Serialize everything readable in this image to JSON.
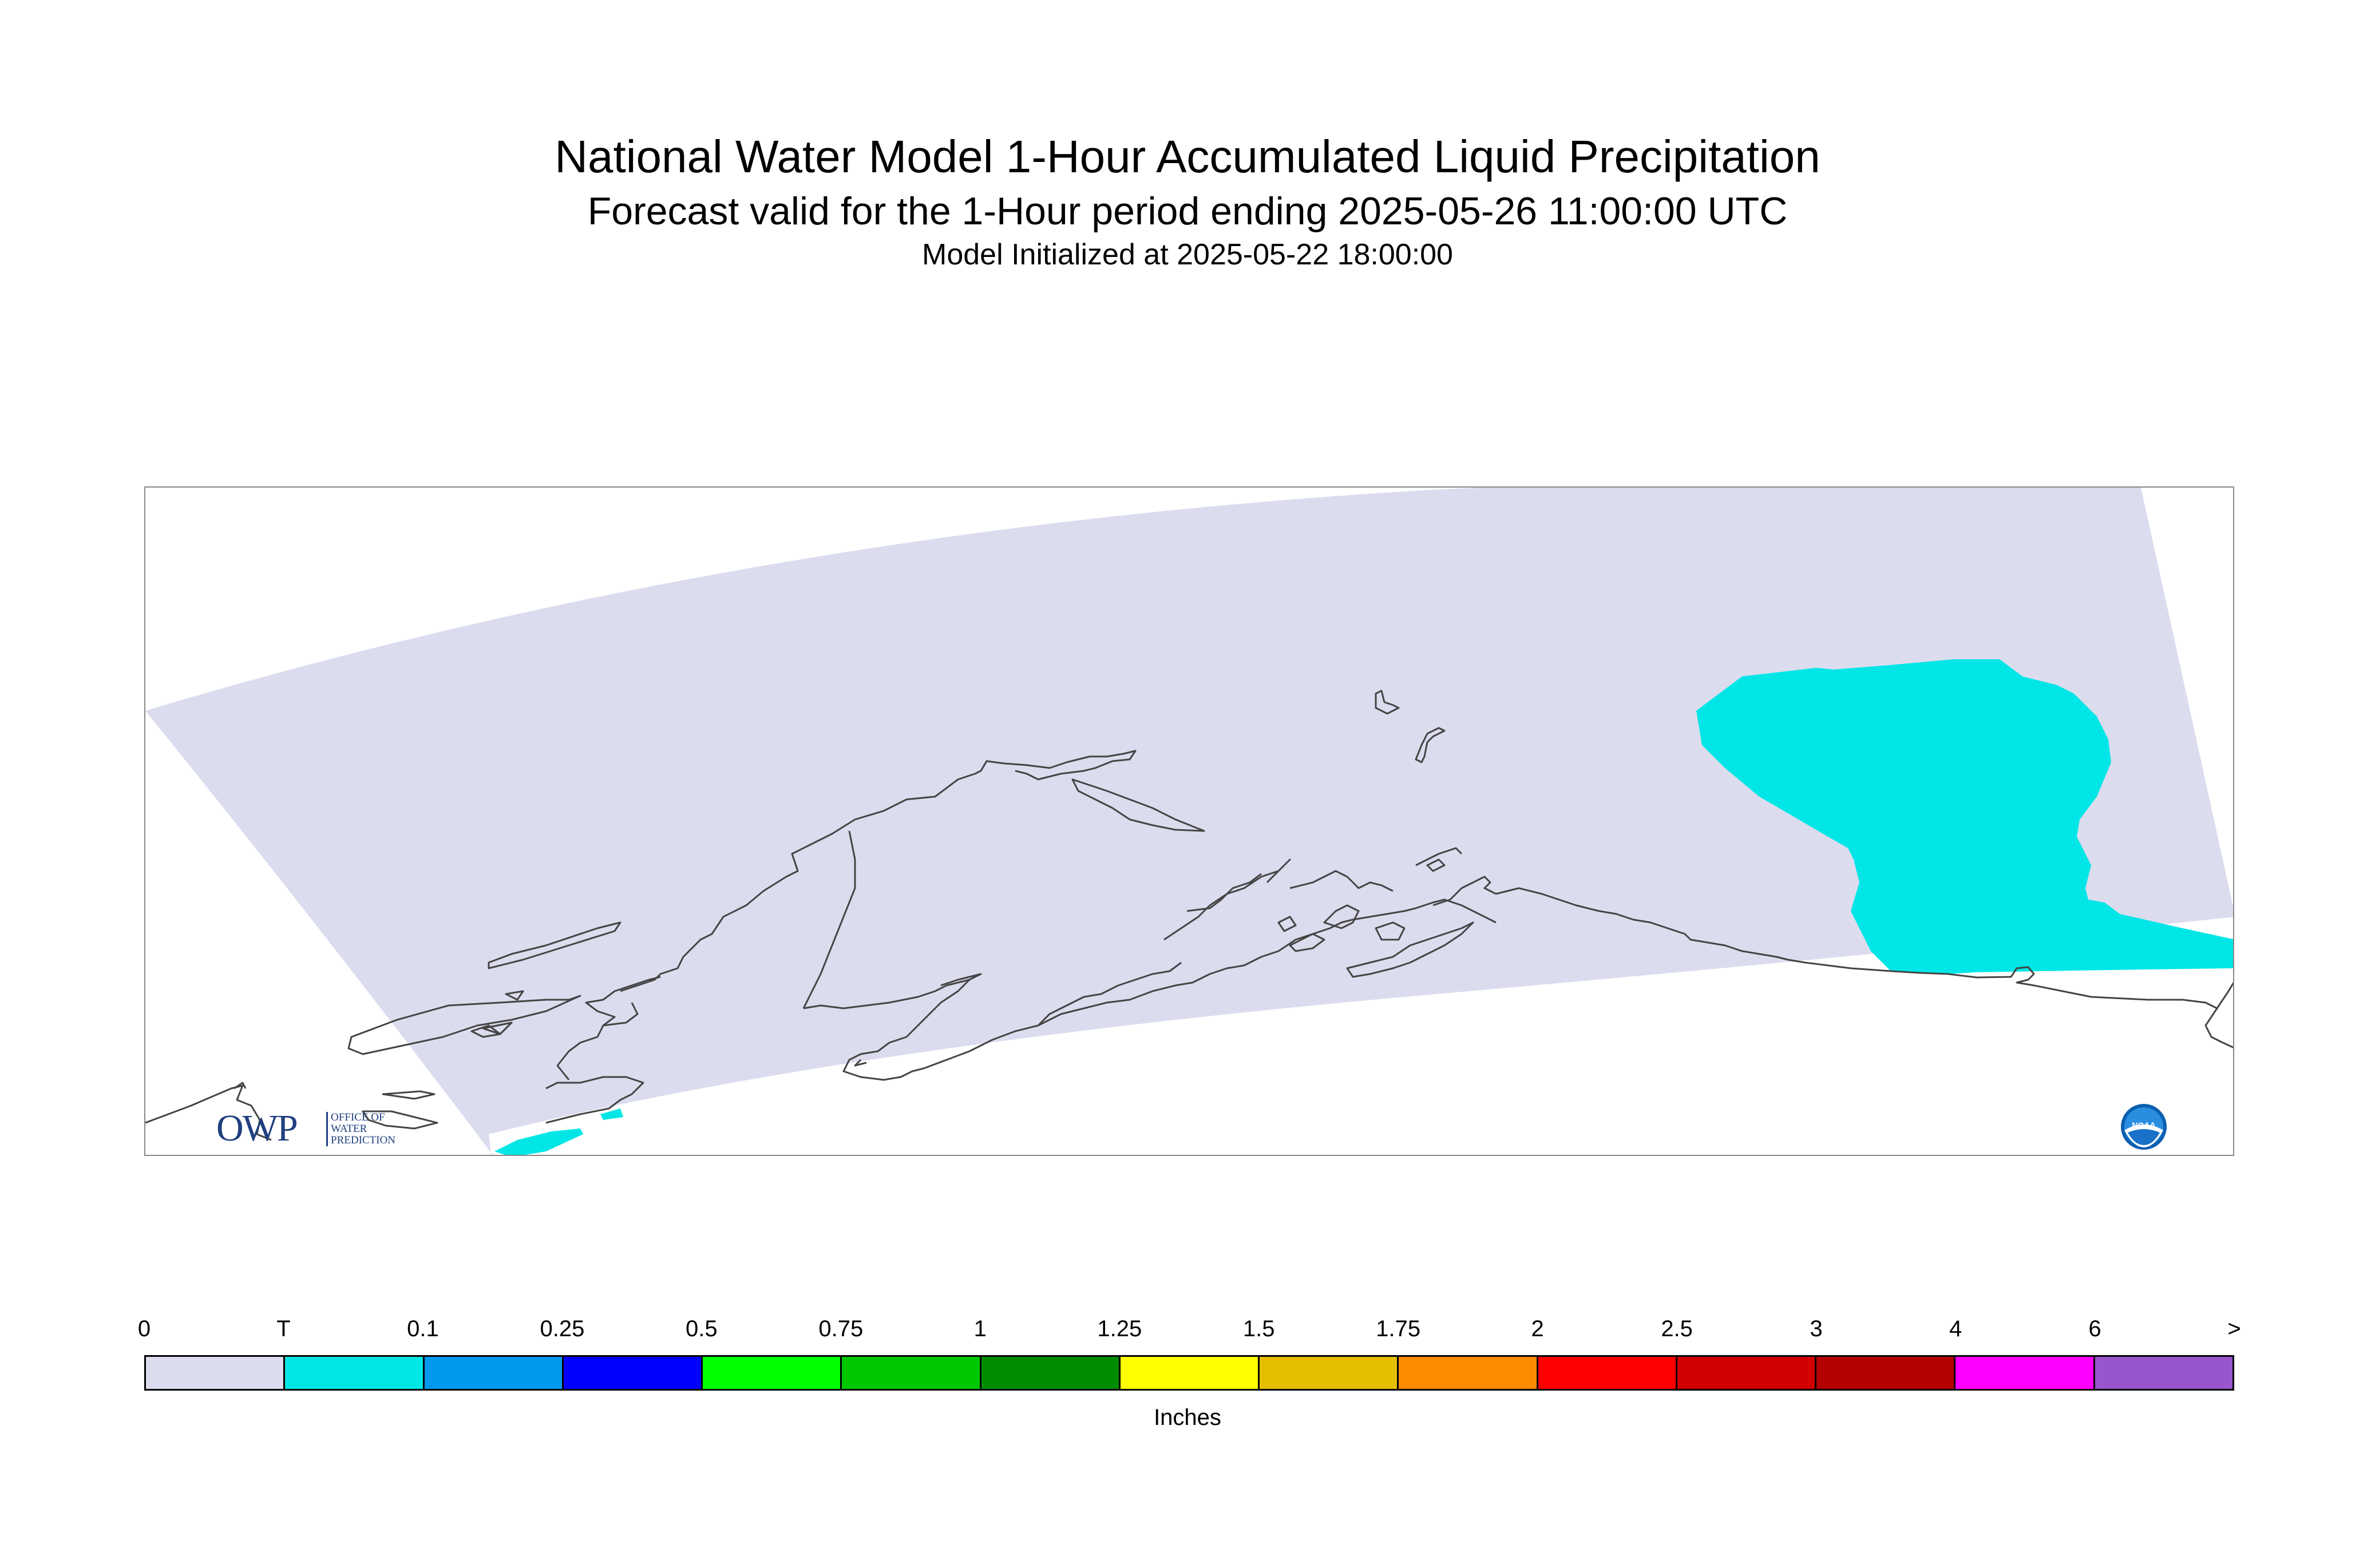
{
  "title": "National Water Model 1-Hour Accumulated Liquid Precipitation",
  "subtitle": "Forecast valid for the 1-Hour period ending 2025-05-26 11:00:00 UTC",
  "init_line": "Model Initialized at 2025-05-22 18:00:00",
  "logos": {
    "owp_letters": "OWP",
    "owp_sub": [
      "OFFICE OF",
      "WATER",
      "PREDICTION"
    ],
    "noaa_text": "NOAA"
  },
  "colors": {
    "domain_fill": "#dcdcef",
    "trace_fill": "#00e6e6",
    "coastline": "#444444"
  },
  "legend": {
    "labels": [
      "0",
      "T",
      "0.1",
      "0.25",
      "0.5",
      "0.75",
      "1",
      "1.25",
      "1.5",
      "1.75",
      "2",
      "2.5",
      "3",
      "4",
      "6",
      ">"
    ],
    "colors": [
      "#dcdcef",
      "#00e6e6",
      "#0099f0",
      "#0000ff",
      "#00ff00",
      "#00c800",
      "#008c00",
      "#ffff00",
      "#e6be00",
      "#ff8c00",
      "#ff0000",
      "#d20000",
      "#b40000",
      "#ff00ff",
      "#9955cc"
    ],
    "units": "Inches"
  }
}
